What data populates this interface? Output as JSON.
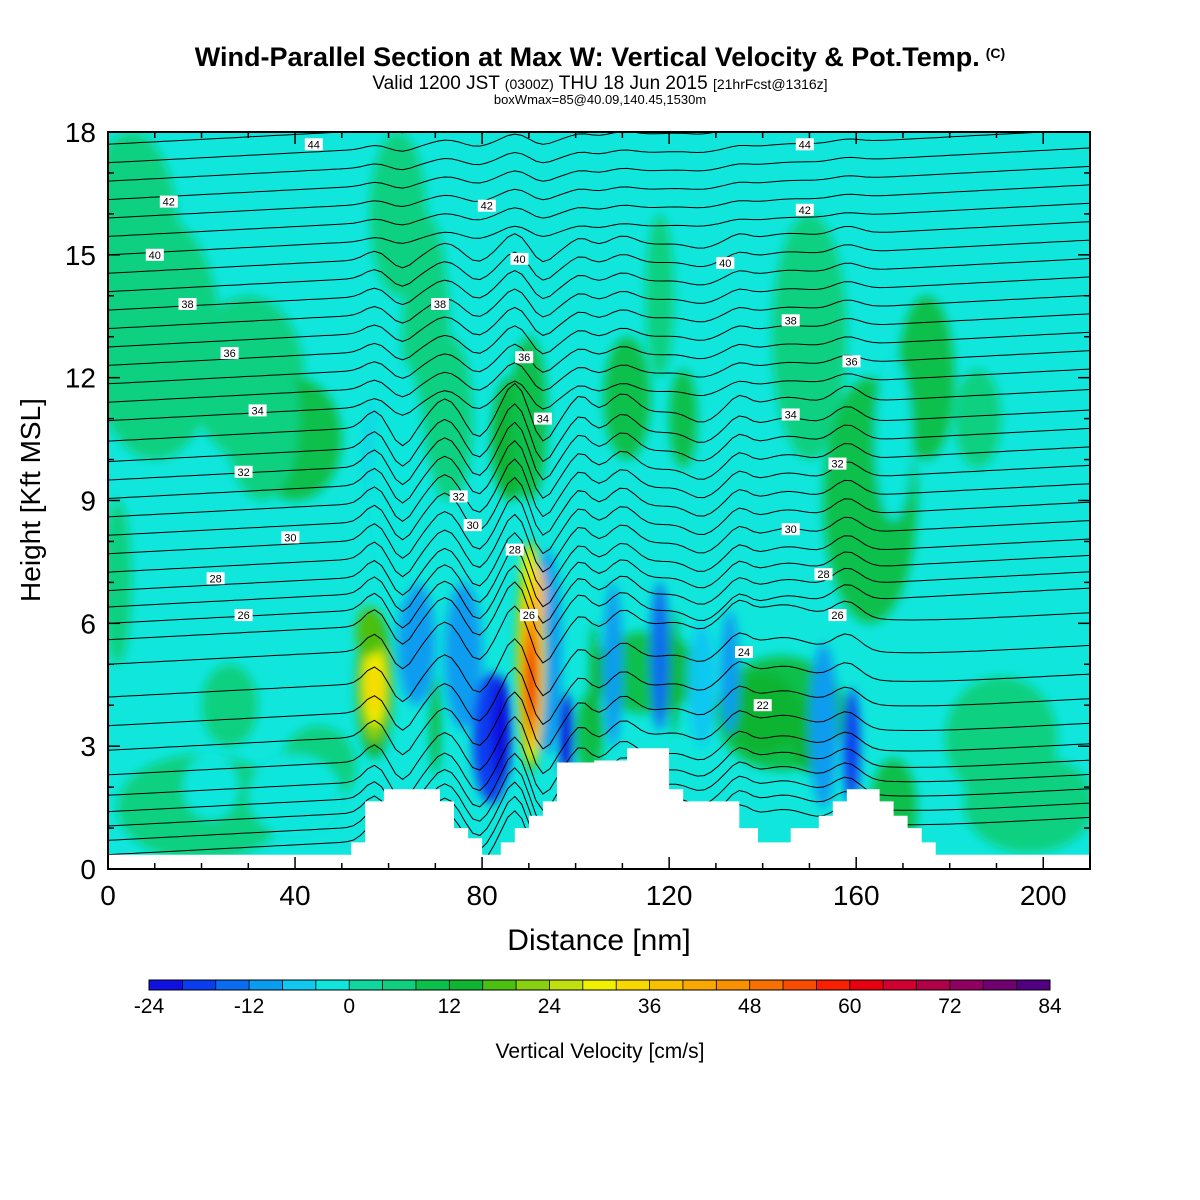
{
  "header": {
    "title": "Wind-Parallel Section at Max W: Vertical Velocity & Pot.Temp.",
    "title_mark": "(C)",
    "valid_a": "Valid 1200 JST",
    "valid_b": "(0300Z)",
    "valid_c": "THU 18 Jun 2015",
    "valid_d": "[21hrFcst@1316z]",
    "box_info": "boxWmax=85@40.09,140.45,1530m"
  },
  "chart_data": {
    "type": "heatmap",
    "xlabel": "Distance [nm]",
    "ylabel": "Height [Kft MSL]",
    "xlim": [
      0,
      210
    ],
    "ylim": [
      0,
      18
    ],
    "xticks": [
      "0",
      "40",
      "80",
      "120",
      "160",
      "200"
    ],
    "yticks": [
      "0",
      "3",
      "6",
      "9",
      "12",
      "15",
      "18"
    ],
    "colorbar": {
      "label": "Vertical Velocity [cm/s]",
      "ticks": [
        "-24",
        "-12",
        "0",
        "12",
        "24",
        "36",
        "48",
        "60",
        "72",
        "84"
      ],
      "levels": [
        -24,
        -20,
        -16,
        -12,
        -8,
        -4,
        0,
        4,
        8,
        12,
        16,
        20,
        24,
        28,
        32,
        36,
        40,
        44,
        48,
        52,
        56,
        60,
        64,
        68,
        72,
        76,
        80,
        84
      ],
      "colors": [
        "#1010e0",
        "#0a3cf0",
        "#0a6cf0",
        "#0a9cf0",
        "#10c8f0",
        "#10e6dc",
        "#10d6a0",
        "#10d080",
        "#0cc04c",
        "#10b430",
        "#4cc010",
        "#88d010",
        "#c0e010",
        "#f0f000",
        "#f8d800",
        "#f8c000",
        "#f8a800",
        "#f89000",
        "#f87000",
        "#f84c00",
        "#f82000",
        "#e80010",
        "#d00030",
        "#b00048",
        "#900060",
        "#700070",
        "#500080"
      ]
    },
    "background_value": 0,
    "theta_contours": {
      "unit": "K",
      "labels": [
        {
          "text": "44",
          "x": 44,
          "y": 17.7
        },
        {
          "text": "44",
          "x": 149,
          "y": 17.7
        },
        {
          "text": "42",
          "x": 13,
          "y": 16.3
        },
        {
          "text": "42",
          "x": 81,
          "y": 16.2
        },
        {
          "text": "42",
          "x": 149,
          "y": 16.1
        },
        {
          "text": "40",
          "x": 10,
          "y": 15.0
        },
        {
          "text": "40",
          "x": 88,
          "y": 14.9
        },
        {
          "text": "40",
          "x": 132,
          "y": 14.8
        },
        {
          "text": "38",
          "x": 17,
          "y": 13.8
        },
        {
          "text": "38",
          "x": 71,
          "y": 13.8
        },
        {
          "text": "38",
          "x": 146,
          "y": 13.4
        },
        {
          "text": "36",
          "x": 26,
          "y": 12.6
        },
        {
          "text": "36",
          "x": 89,
          "y": 12.5
        },
        {
          "text": "36",
          "x": 159,
          "y": 12.4
        },
        {
          "text": "34",
          "x": 32,
          "y": 11.2
        },
        {
          "text": "34",
          "x": 93,
          "y": 11.0
        },
        {
          "text": "34",
          "x": 146,
          "y": 11.1
        },
        {
          "text": "32",
          "x": 29,
          "y": 9.7
        },
        {
          "text": "32",
          "x": 75,
          "y": 9.1
        },
        {
          "text": "32",
          "x": 156,
          "y": 9.9
        },
        {
          "text": "30",
          "x": 39,
          "y": 8.1
        },
        {
          "text": "30",
          "x": 78,
          "y": 8.4
        },
        {
          "text": "30",
          "x": 146,
          "y": 8.3
        },
        {
          "text": "28",
          "x": 23,
          "y": 7.1
        },
        {
          "text": "28",
          "x": 87,
          "y": 7.8
        },
        {
          "text": "28",
          "x": 153,
          "y": 7.2
        },
        {
          "text": "26",
          "x": 29,
          "y": 6.2
        },
        {
          "text": "26",
          "x": 90,
          "y": 6.2
        },
        {
          "text": "26",
          "x": 156,
          "y": 6.2
        },
        {
          "text": "24",
          "x": 136,
          "y": 5.3
        },
        {
          "text": "22",
          "x": 140,
          "y": 4.0
        }
      ]
    },
    "updraft_maxima": [
      {
        "x": 57,
        "ymax": 6.3,
        "w_peak": 36
      },
      {
        "x": 90.5,
        "ymax": 8.0,
        "w_peak": 60
      }
    ],
    "terrain_kft": [
      [
        0,
        0.35
      ],
      [
        52,
        0.35
      ],
      [
        52,
        0.65
      ],
      [
        55,
        0.65
      ],
      [
        55,
        1.65
      ],
      [
        59,
        1.65
      ],
      [
        59,
        1.95
      ],
      [
        71,
        1.95
      ],
      [
        71,
        1.65
      ],
      [
        74,
        1.65
      ],
      [
        74,
        1.0
      ],
      [
        77,
        1.0
      ],
      [
        77,
        0.75
      ],
      [
        80,
        0.75
      ],
      [
        80,
        0.35
      ],
      [
        84,
        0.35
      ],
      [
        84,
        0.65
      ],
      [
        87,
        0.65
      ],
      [
        87,
        1.0
      ],
      [
        90,
        1.0
      ],
      [
        90,
        1.3
      ],
      [
        93,
        1.3
      ],
      [
        93,
        1.65
      ],
      [
        96,
        1.65
      ],
      [
        96,
        2.6
      ],
      [
        104,
        2.6
      ],
      [
        104,
        2.65
      ],
      [
        111,
        2.65
      ],
      [
        111,
        2.95
      ],
      [
        120,
        2.95
      ],
      [
        120,
        1.95
      ],
      [
        123,
        1.95
      ],
      [
        123,
        1.65
      ],
      [
        135,
        1.65
      ],
      [
        135,
        1.0
      ],
      [
        139,
        1.0
      ],
      [
        139,
        0.65
      ],
      [
        146,
        0.65
      ],
      [
        146,
        1.0
      ],
      [
        152,
        1.0
      ],
      [
        152,
        1.3
      ],
      [
        155,
        1.3
      ],
      [
        155,
        1.65
      ],
      [
        158,
        1.65
      ],
      [
        158,
        1.95
      ],
      [
        165,
        1.95
      ],
      [
        165,
        1.65
      ],
      [
        168,
        1.65
      ],
      [
        168,
        1.3
      ],
      [
        171,
        1.3
      ],
      [
        171,
        1.0
      ],
      [
        174,
        1.0
      ],
      [
        174,
        0.65
      ],
      [
        177,
        0.65
      ],
      [
        177,
        0.35
      ],
      [
        210,
        0.35
      ]
    ]
  }
}
